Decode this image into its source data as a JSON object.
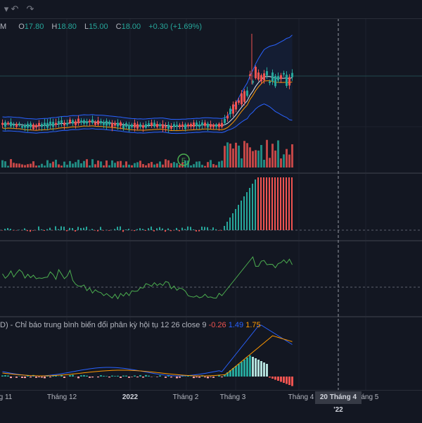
{
  "toolbar": {
    "undo_icon": "undo-icon",
    "redo_icon": "redo-icon",
    "undo_glyph": "↶",
    "redo_glyph": "↷"
  },
  "symbol_legend": {
    "symbol_tail": "M",
    "open_label": "O",
    "open": "17.80",
    "high_label": "H",
    "high": "18.80",
    "low_label": "L",
    "low": "15.00",
    "close_label": "C",
    "close": "18.00",
    "change": "+0.30 (+1.69%)"
  },
  "macd_legend": {
    "title": "D) - Chỉ báo trung bình biến đổi phân kỳ hội tụ 12 26 close 9",
    "histogram": "-0.26",
    "macd": "1.49",
    "signal": "1.75"
  },
  "x_axis": {
    "ticks": [
      "g 11",
      "Tháng 12",
      "2022",
      "Tháng 2",
      "Tháng 3",
      "Tháng 4",
      "Tháng 5"
    ],
    "cursor_label": "20 Tháng 4 '22"
  },
  "volume_marker": "E",
  "colors": {
    "up": "#26a69a",
    "down": "#ef5350",
    "macd_line": "#2962ff",
    "signal_line": "#ff9800",
    "rsi_line": "#4caf50",
    "band": "#2962ff"
  }
}
